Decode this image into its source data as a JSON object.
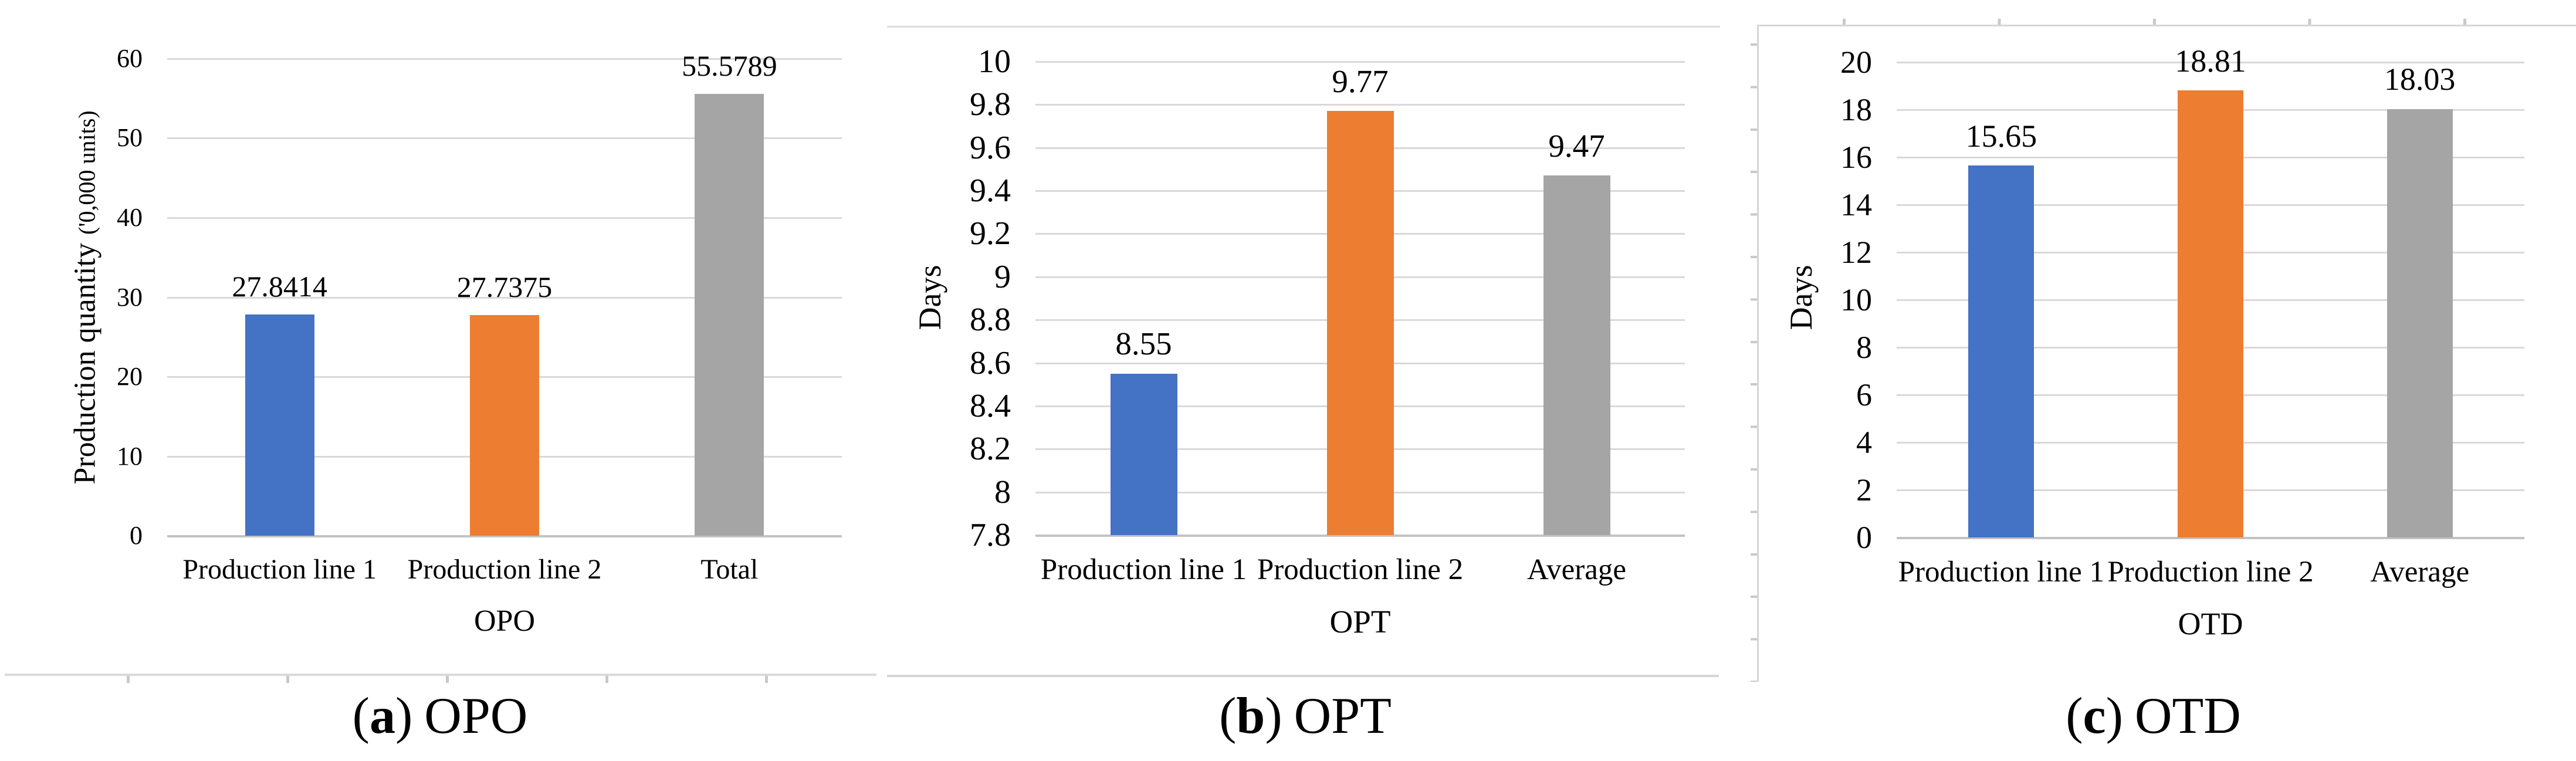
{
  "palette": {
    "series_blue": "#4472C4",
    "series_orange": "#ED7D31",
    "series_gray": "#A5A5A5",
    "gridline": "#D9D9D9",
    "axis_line": "#C3C3C3",
    "frame_line": "#D6D6D6",
    "text": "#000000"
  },
  "chart_data": [
    {
      "type": "bar",
      "title": "",
      "xlabel": "OPO",
      "ylabel": {
        "main": "Production quantity",
        "small": "('0,000 units)"
      },
      "categories": [
        "Production line 1",
        "Production line 2",
        "Total"
      ],
      "values": [
        27.8414,
        27.7375,
        55.5789
      ],
      "value_labels": [
        "27.8414",
        "27.7375",
        "55.5789"
      ],
      "bar_colors": [
        "#4472C4",
        "#ED7D31",
        "#A5A5A5"
      ],
      "ymin": 0,
      "ymax": 60,
      "yticks_top_to_bottom": [
        "60",
        "50",
        "40",
        "30",
        "20",
        "10",
        "0"
      ],
      "grid": true,
      "legend": "none",
      "caption": {
        "paren_open": "(",
        "letter": "a",
        "paren_close": ")",
        "label": "OPO"
      }
    },
    {
      "type": "bar",
      "title": "",
      "xlabel": "OPT",
      "ylabel": {
        "main": "Days",
        "small": ""
      },
      "categories": [
        "Production line 1",
        "Production line 2",
        "Average"
      ],
      "values": [
        8.55,
        9.77,
        9.47
      ],
      "value_labels": [
        "8.55",
        "9.77",
        "9.47"
      ],
      "bar_colors": [
        "#4472C4",
        "#ED7D31",
        "#A5A5A5"
      ],
      "ymin": 7.8,
      "ymax": 10,
      "yticks_top_to_bottom": [
        "10",
        "9.8",
        "9.6",
        "9.4",
        "9.2",
        "9",
        "8.8",
        "8.6",
        "8.4",
        "8.2",
        "8",
        "7.8"
      ],
      "grid": true,
      "legend": "none",
      "caption": {
        "paren_open": "(",
        "letter": "b",
        "paren_close": ")",
        "label": "OPT"
      }
    },
    {
      "type": "bar",
      "title": "",
      "xlabel": "OTD",
      "ylabel": {
        "main": "Days",
        "small": ""
      },
      "categories": [
        "Production line 1",
        "Production line 2",
        "Average"
      ],
      "values": [
        15.65,
        18.81,
        18.03
      ],
      "value_labels": [
        "15.65",
        "18.81",
        "18.03"
      ],
      "bar_colors": [
        "#4472C4",
        "#ED7D31",
        "#A5A5A5"
      ],
      "ymin": 0,
      "ymax": 20,
      "yticks_top_to_bottom": [
        "20",
        "18",
        "16",
        "14",
        "12",
        "10",
        "8",
        "6",
        "4",
        "2",
        "0"
      ],
      "grid": true,
      "legend": "none",
      "caption": {
        "paren_open": "(",
        "letter": "c",
        "paren_close": ")",
        "label": "OTD"
      }
    }
  ]
}
